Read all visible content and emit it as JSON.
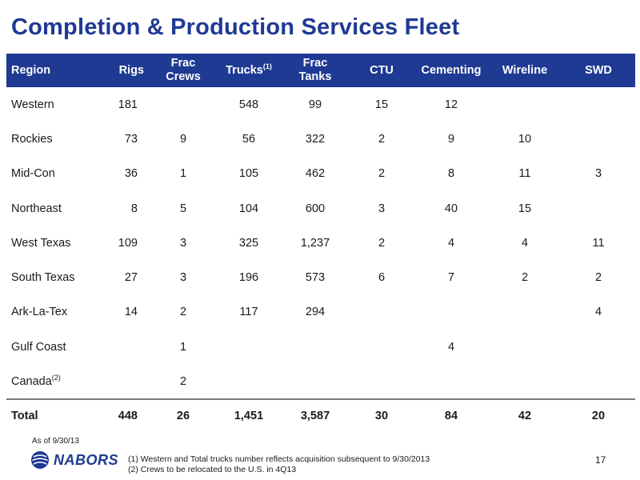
{
  "title": "Completion & Production Services Fleet",
  "table": {
    "headers": {
      "region": "Region",
      "rigs": "Rigs",
      "frac_crews": "Frac\nCrews",
      "trucks": "Trucks",
      "trucks_sup": "(1)",
      "frac_tanks": "Frac\nTanks",
      "ctu": "CTU",
      "cementing": "Cementing",
      "wireline": "Wireline",
      "swd": "SWD"
    },
    "rows": [
      {
        "region": "Western",
        "sup": "",
        "rigs": "181",
        "frac_crews": "",
        "trucks": "548",
        "frac_tanks": "99",
        "ctu": "15",
        "cementing": "12",
        "wireline": "",
        "swd": ""
      },
      {
        "region": "Rockies",
        "sup": "",
        "rigs": "73",
        "frac_crews": "9",
        "trucks": "56",
        "frac_tanks": "322",
        "ctu": "2",
        "cementing": "9",
        "wireline": "10",
        "swd": ""
      },
      {
        "region": "Mid-Con",
        "sup": "",
        "rigs": "36",
        "frac_crews": "1",
        "trucks": "105",
        "frac_tanks": "462",
        "ctu": "2",
        "cementing": "8",
        "wireline": "11",
        "swd": "3"
      },
      {
        "region": "Northeast",
        "sup": "",
        "rigs": "8",
        "frac_crews": "5",
        "trucks": "104",
        "frac_tanks": "600",
        "ctu": "3",
        "cementing": "40",
        "wireline": "15",
        "swd": ""
      },
      {
        "region": "West Texas",
        "sup": "",
        "rigs": "109",
        "frac_crews": "3",
        "trucks": "325",
        "frac_tanks": "1,237",
        "ctu": "2",
        "cementing": "4",
        "wireline": "4",
        "swd": "11"
      },
      {
        "region": "South Texas",
        "sup": "",
        "rigs": "27",
        "frac_crews": "3",
        "trucks": "196",
        "frac_tanks": "573",
        "ctu": "6",
        "cementing": "7",
        "wireline": "2",
        "swd": "2"
      },
      {
        "region": "Ark-La-Tex",
        "sup": "",
        "rigs": "14",
        "frac_crews": "2",
        "trucks": "117",
        "frac_tanks": "294",
        "ctu": "",
        "cementing": "",
        "wireline": "",
        "swd": "4"
      },
      {
        "region": "Gulf Coast",
        "sup": "",
        "rigs": "",
        "frac_crews": "1",
        "trucks": "",
        "frac_tanks": "",
        "ctu": "",
        "cementing": "4",
        "wireline": "",
        "swd": ""
      },
      {
        "region": "Canada",
        "sup": "(2)",
        "rigs": "",
        "frac_crews": "2",
        "trucks": "",
        "frac_tanks": "",
        "ctu": "",
        "cementing": "",
        "wireline": "",
        "swd": ""
      }
    ],
    "total": {
      "region": "Total",
      "rigs": "448",
      "frac_crews": "26",
      "trucks": "1,451",
      "frac_tanks": "3,587",
      "ctu": "30",
      "cementing": "84",
      "wireline": "42",
      "swd": "20"
    }
  },
  "as_of": "As of  9/30/13",
  "logo": {
    "text": "NABORS",
    "icon": "nabors-globe-logo-icon"
  },
  "footnotes": [
    "(1)  Western and Total trucks number reflects acquisition subsequent to 9/30/2013",
    "(2)  Crews to be relocated to the U.S. in 4Q13"
  ],
  "page_number": "17",
  "colors": {
    "brand_blue": "#1f3a93",
    "rule_gray": "#7a7a7a"
  }
}
